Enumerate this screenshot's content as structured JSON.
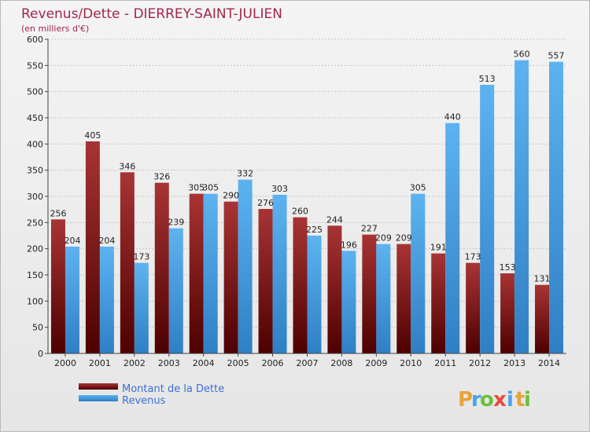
{
  "chart_data": {
    "type": "bar",
    "title": "Revenus/Dette - DIERREY-SAINT-JULIEN",
    "subtitle": "(en milliers d'€)",
    "categories": [
      "2000",
      "2001",
      "2002",
      "2003",
      "2004",
      "2005",
      "2006",
      "2007",
      "2008",
      "2009",
      "2010",
      "2011",
      "2012",
      "2013",
      "2014"
    ],
    "series": [
      {
        "name": "Montant de la Dette",
        "color": "#8b1a1a",
        "values": [
          256,
          405,
          346,
          326,
          305,
          290,
          276,
          260,
          244,
          227,
          209,
          191,
          173,
          153,
          131
        ]
      },
      {
        "name": "Revenus",
        "color": "#4aa3e8",
        "values": [
          204,
          204,
          173,
          239,
          305,
          332,
          303,
          225,
          196,
          209,
          305,
          440,
          513,
          560,
          557
        ]
      }
    ],
    "ylim": [
      0,
      600
    ],
    "yticks": [
      0,
      50,
      100,
      150,
      200,
      250,
      300,
      350,
      400,
      450,
      500,
      550,
      600
    ],
    "grid": true,
    "legend_position": "bottom-left"
  },
  "logo": {
    "letters": [
      "P",
      "r",
      "o",
      "x",
      "i",
      "t",
      "i"
    ],
    "colors": [
      "#e8a33a",
      "#4aa3e8",
      "#6cbf3c",
      "#e84a3a",
      "#4aa3e8",
      "#e8a33a",
      "#6cbf3c"
    ]
  }
}
